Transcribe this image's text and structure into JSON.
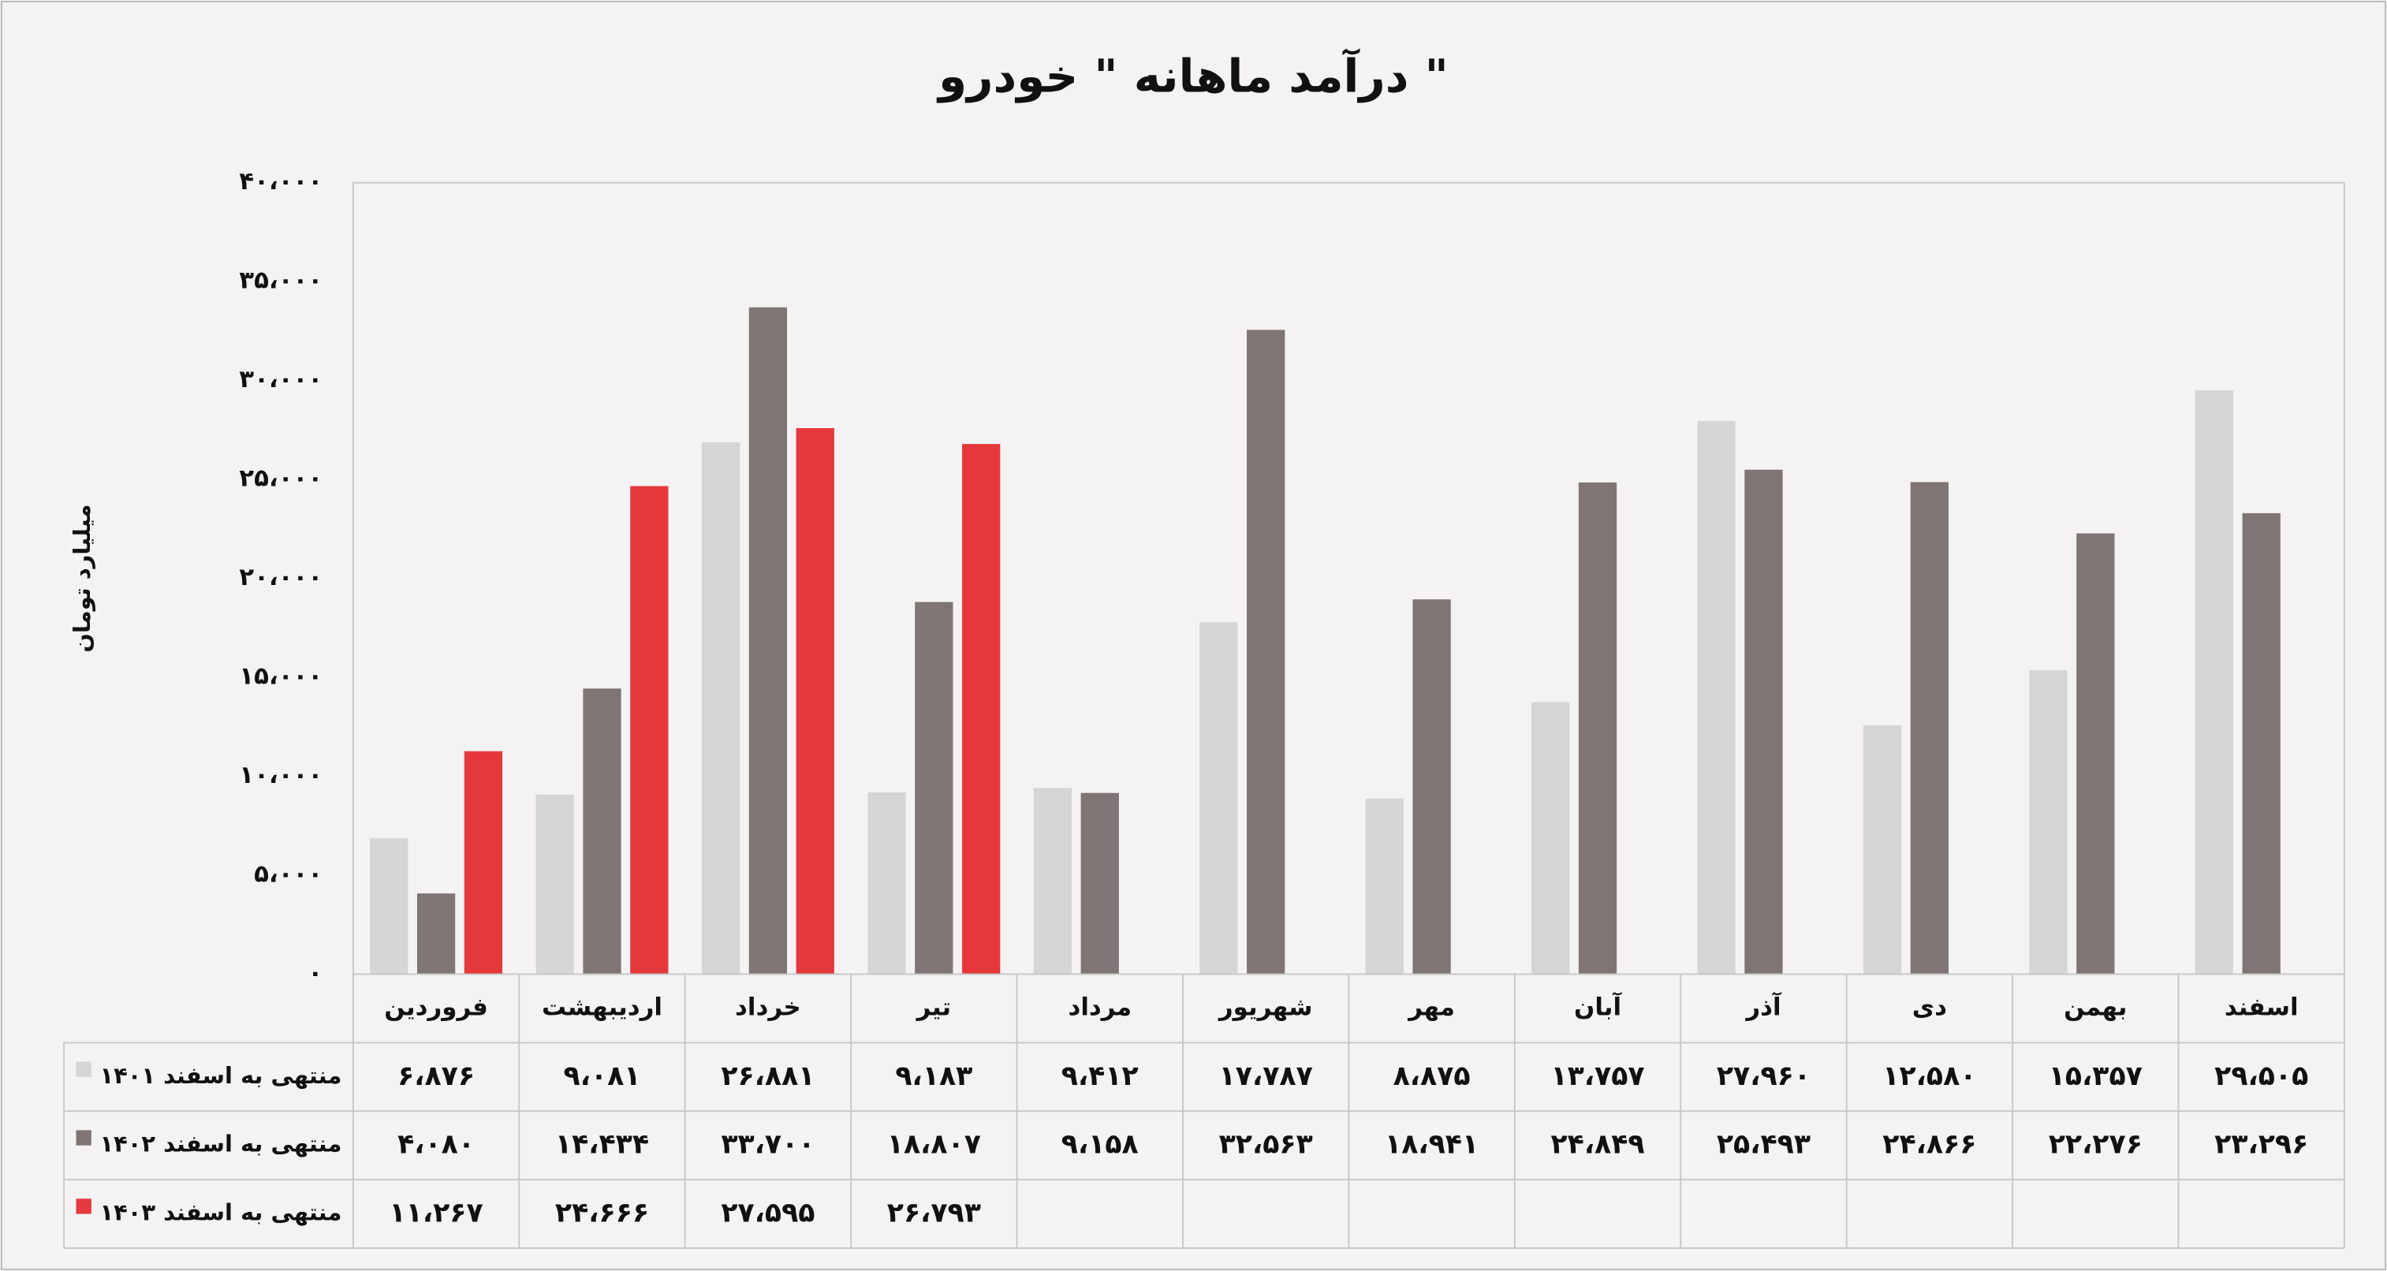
{
  "chart_data": {
    "type": "bar",
    "title": "درآمد ماهانه \" خودرو \"",
    "y_label": "میلیارد تومان",
    "categories": [
      "فروردین",
      "اردیبهشت",
      "خرداد",
      "تیر",
      "مرداد",
      "شهریور",
      "مهر",
      "آبان",
      "آذر",
      "دی",
      "بهمن",
      "اسفند"
    ],
    "series": [
      {
        "name": "منتهی به اسفند ۱۴۰۱",
        "color": "#d6d5d5",
        "values": [
          6876,
          9081,
          26881,
          9183,
          9412,
          17787,
          8875,
          13757,
          27960,
          12580,
          15357,
          29505
        ],
        "value_labels": [
          "۶،۸۷۶",
          "۹،۰۸۱",
          "۲۶،۸۸۱",
          "۹،۱۸۳",
          "۹،۴۱۲",
          "۱۷،۷۸۷",
          "۸،۸۷۵",
          "۱۳،۷۵۷",
          "۲۷،۹۶۰",
          "۱۲،۵۸۰",
          "۱۵،۳۵۷",
          "۲۹،۵۰۵"
        ]
      },
      {
        "name": "منتهی به اسفند ۱۴۰۲",
        "color": "#7e7574",
        "values": [
          4080,
          14434,
          33700,
          18807,
          9158,
          32563,
          18941,
          24849,
          25493,
          24866,
          22276,
          23296
        ],
        "value_labels": [
          "۴،۰۸۰",
          "۱۴،۴۳۴",
          "۳۳،۷۰۰",
          "۱۸،۸۰۷",
          "۹،۱۵۸",
          "۳۲،۵۶۳",
          "۱۸،۹۴۱",
          "۲۴،۸۴۹",
          "۲۵،۴۹۳",
          "۲۴،۸۶۶",
          "۲۲،۲۷۶",
          "۲۳،۲۹۶"
        ]
      },
      {
        "name": "منتهی به اسفند ۱۴۰۳",
        "color": "#e5383b",
        "values": [
          11267,
          24666,
          27595,
          26793,
          null,
          null,
          null,
          null,
          null,
          null,
          null,
          null
        ],
        "value_labels": [
          "۱۱،۲۶۷",
          "۲۴،۶۶۶",
          "۲۷،۵۹۵",
          "۲۶،۷۹۳",
          null,
          null,
          null,
          null,
          null,
          null,
          null,
          null
        ]
      }
    ],
    "ylim": [
      0,
      40000
    ],
    "yticks": [
      {
        "value": 0,
        "label": "۰"
      },
      {
        "value": 5000,
        "label": "۵،۰۰۰"
      },
      {
        "value": 10000,
        "label": "۱۰،۰۰۰"
      },
      {
        "value": 15000,
        "label": "۱۵،۰۰۰"
      },
      {
        "value": 20000,
        "label": "۲۰،۰۰۰"
      },
      {
        "value": 25000,
        "label": "۲۵،۰۰۰"
      },
      {
        "value": 30000,
        "label": "۳۰،۰۰۰"
      },
      {
        "value": 35000,
        "label": "۳۵،۰۰۰"
      },
      {
        "value": 40000,
        "label": "۴۰،۰۰۰"
      }
    ]
  }
}
